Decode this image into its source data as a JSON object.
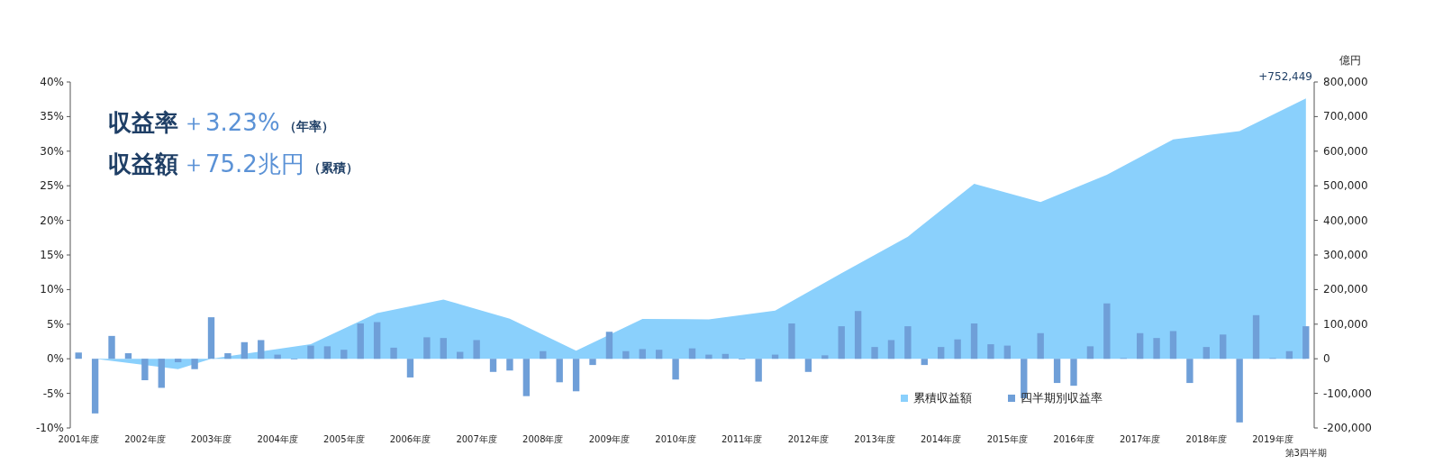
{
  "chart_data": {
    "type": "bar",
    "categories": [
      "2001年度",
      null,
      null,
      null,
      "2002年度",
      null,
      null,
      null,
      "2003年度",
      null,
      null,
      null,
      "2004年度",
      null,
      null,
      null,
      "2005年度",
      null,
      null,
      null,
      "2006年度",
      null,
      null,
      null,
      "2007年度",
      null,
      null,
      null,
      "2008年度",
      null,
      null,
      null,
      "2009年度",
      null,
      null,
      null,
      "2010年度",
      null,
      null,
      null,
      "2011年度",
      null,
      null,
      null,
      "2012年度",
      null,
      null,
      null,
      "2013年度",
      null,
      null,
      null,
      "2014年度",
      null,
      null,
      null,
      "2015年度",
      null,
      null,
      null,
      "2016年度",
      null,
      null,
      null,
      "2017年度",
      null,
      null,
      null,
      "2018年度",
      null,
      null,
      null,
      "2019年度",
      null,
      "第3四半期"
    ],
    "series": [
      {
        "name": "累積収益額",
        "type": "area",
        "axis": "y2",
        "color": "#8ad0fc",
        "values": [
          null,
          0,
          null,
          null,
          null,
          null,
          -30000,
          null,
          0,
          null,
          null,
          null,
          null,
          null,
          42000,
          null,
          null,
          null,
          132000,
          null,
          null,
          null,
          171000,
          null,
          null,
          null,
          116000,
          null,
          null,
          null,
          23000,
          null,
          null,
          null,
          115000,
          null,
          null,
          null,
          114000,
          null,
          null,
          null,
          139000,
          null,
          null,
          null,
          247000,
          null,
          null,
          null,
          353000,
          null,
          null,
          null,
          506000,
          null,
          null,
          null,
          453000,
          null,
          null,
          null,
          532000,
          null,
          null,
          null,
          634000,
          null,
          null,
          null,
          658000,
          null,
          null,
          null,
          752449
        ]
      },
      {
        "name": "四半期別収益率",
        "color": "#6f9fd8",
        "values": [
          0.9,
          -7.9,
          3.3,
          0.8,
          -3.1,
          -4.2,
          -0.5,
          -1.5,
          6.0,
          0.8,
          2.4,
          2.7,
          0.6,
          -0.1,
          1.9,
          1.8,
          1.3,
          5.1,
          5.3,
          1.6,
          -2.7,
          3.1,
          3.0,
          1.0,
          2.7,
          -1.9,
          -1.7,
          -5.4,
          1.1,
          -3.4,
          -4.7,
          -0.9,
          3.9,
          1.1,
          1.4,
          1.3,
          -3.0,
          1.5,
          0.6,
          0.7,
          -0.1,
          -3.3,
          0.6,
          5.1,
          -1.9,
          0.5,
          4.7,
          6.9,
          1.7,
          2.7,
          4.7,
          -0.9,
          1.7,
          2.8,
          5.1,
          2.1,
          1.9,
          -5.7,
          3.7,
          -3.5,
          -3.9,
          1.8,
          8.0,
          0.1,
          3.7,
          3.0,
          4.0,
          -3.5,
          1.7,
          3.5,
          -9.2,
          6.3,
          0.1,
          1.1,
          4.7
        ]
      }
    ],
    "ylim": [
      -10,
      40
    ],
    "yticks": [
      {
        "value": -10,
        "label": "-10%"
      },
      {
        "value": -5,
        "label": "-5%"
      },
      {
        "value": 0,
        "label": "0%"
      },
      {
        "value": 5,
        "label": "5%"
      },
      {
        "value": 10,
        "label": "10%"
      },
      {
        "value": 15,
        "label": "15%"
      },
      {
        "value": 20,
        "label": "20%"
      },
      {
        "value": 25,
        "label": "25%"
      },
      {
        "value": 30,
        "label": "30%"
      },
      {
        "value": 35,
        "label": "35%"
      },
      {
        "value": 40,
        "label": "40%"
      }
    ],
    "y2lim": [
      -200000,
      800000
    ],
    "y2ticks": [
      {
        "value": -200000,
        "label": "-200,000"
      },
      {
        "value": -100000,
        "label": "-100,000"
      },
      {
        "value": 0,
        "label": "0"
      },
      {
        "value": 100000,
        "label": "100,000"
      },
      {
        "value": 200000,
        "label": "200,000"
      },
      {
        "value": 300000,
        "label": "300,000"
      },
      {
        "value": 400000,
        "label": "400,000"
      },
      {
        "value": 500000,
        "label": "500,000"
      },
      {
        "value": 600000,
        "label": "600,000"
      },
      {
        "value": 700000,
        "label": "700,000"
      },
      {
        "value": 800000,
        "label": "800,000"
      }
    ],
    "y2label": "億円",
    "annotations": [
      "収益率",
      "＋3.23%",
      "（年率）",
      "収益額",
      "＋75.2兆円",
      "（累積）",
      "+752,449"
    ],
    "legend": "bottom right",
    "grid": false
  }
}
